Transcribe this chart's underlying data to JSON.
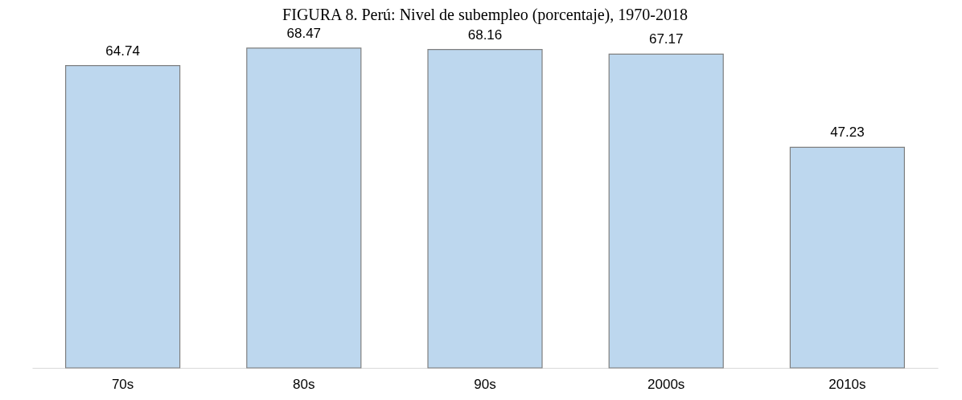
{
  "chart_data": {
    "type": "bar",
    "title": "FIGURA 8. Perú: Nivel de subempleo (porcentaje), 1970-2018",
    "categories": [
      "70s",
      "80s",
      "90s",
      "2000s",
      "2010s"
    ],
    "values": [
      64.74,
      68.47,
      68.16,
      67.17,
      47.23
    ],
    "color": "#bdd7ee",
    "data_labels": true
  }
}
